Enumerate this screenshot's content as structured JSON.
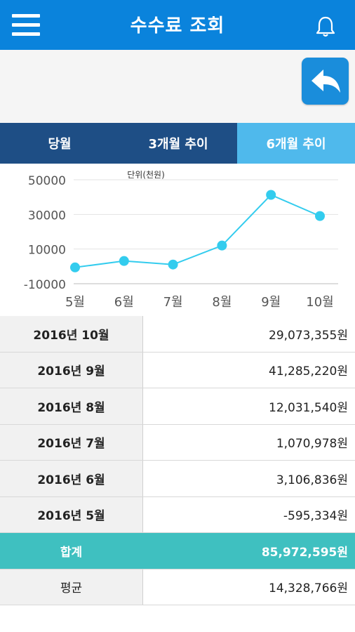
{
  "header": {
    "title": "수수료 조회"
  },
  "tabs": [
    {
      "label": "당월"
    },
    {
      "label": "3개월 추이"
    },
    {
      "label": "6개월 추이"
    }
  ],
  "colors": {
    "header": "#0a83dc",
    "tab_dark": "#1e4e85",
    "tab_active": "#4fb9ec",
    "line": "#33ccee",
    "total_row": "#3fc0c0"
  },
  "chart_data": {
    "type": "line",
    "unit_label": "단위(천원)",
    "categories": [
      "5월",
      "6월",
      "7월",
      "8월",
      "9월",
      "10월"
    ],
    "values": [
      -595,
      3107,
      1071,
      12032,
      41285,
      29073
    ],
    "y_ticks": [
      "50000",
      "30000",
      "10000",
      "-10000"
    ],
    "ylim": [
      -10000,
      50000
    ],
    "grid": true
  },
  "table": {
    "rows": [
      {
        "label": "2016년 10월",
        "value": "29,073,355원"
      },
      {
        "label": "2016년 9월",
        "value": "41,285,220원"
      },
      {
        "label": "2016년 8월",
        "value": "12,031,540원"
      },
      {
        "label": "2016년 7월",
        "value": "1,070,978원"
      },
      {
        "label": "2016년 6월",
        "value": "3,106,836원"
      },
      {
        "label": "2016년 5월",
        "value": "-595,334원"
      }
    ],
    "total": {
      "label": "합계",
      "value": "85,972,595원"
    },
    "average": {
      "label": "평균",
      "value": "14,328,766원"
    }
  }
}
